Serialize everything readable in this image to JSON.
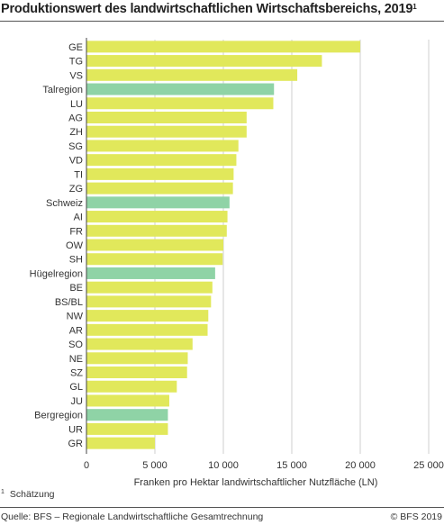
{
  "title_text": "Produktionswert des landwirtschaftlichen Wirtschaftsbereichs, 2019",
  "title_footnote_mark": "1",
  "footnote": {
    "mark": "1",
    "text": "Schätzung"
  },
  "source": "Quelle: BFS – Regionale Landwirtschaftliche Gesamtrechnung",
  "copyright": "© BFS 2019",
  "colors": {
    "canton": "#e1e85b",
    "region": "#8fd3a6",
    "grid": "#cfcfcf"
  },
  "chart_data": {
    "type": "bar",
    "orientation": "horizontal",
    "title": "Produktionswert des landwirtschaftlichen Wirtschaftsbereichs, 2019",
    "xlabel": "Franken pro Hektar landwirtschaftlicher Nutzfläche (LN)",
    "ylabel": "",
    "xlim": [
      0,
      25000
    ],
    "xticks": [
      0,
      5000,
      10000,
      15000,
      20000,
      25000
    ],
    "xtick_labels": [
      "0",
      "5 000",
      "10 000",
      "15 000",
      "20 000",
      "25 000"
    ],
    "grid": true,
    "categories": [
      "GE",
      "TG",
      "VS",
      "Talregion",
      "LU",
      "AG",
      "ZH",
      "SG",
      "VD",
      "TI",
      "ZG",
      "Schweiz",
      "AI",
      "FR",
      "OW",
      "SH",
      "Hügelregion",
      "BE",
      "BS/BL",
      "NW",
      "AR",
      "SO",
      "NE",
      "SZ",
      "GL",
      "JU",
      "Bergregion",
      "UR",
      "GR"
    ],
    "values": [
      20000,
      17200,
      15400,
      13700,
      13650,
      11700,
      11700,
      11100,
      10950,
      10750,
      10700,
      10450,
      10300,
      10250,
      10000,
      9950,
      9400,
      9200,
      9100,
      8900,
      8850,
      7750,
      7400,
      7350,
      6600,
      6050,
      5950,
      5950,
      5000
    ],
    "kind": [
      "canton",
      "canton",
      "canton",
      "region",
      "canton",
      "canton",
      "canton",
      "canton",
      "canton",
      "canton",
      "canton",
      "region",
      "canton",
      "canton",
      "canton",
      "canton",
      "region",
      "canton",
      "canton",
      "canton",
      "canton",
      "canton",
      "canton",
      "canton",
      "canton",
      "canton",
      "region",
      "canton",
      "canton"
    ]
  }
}
